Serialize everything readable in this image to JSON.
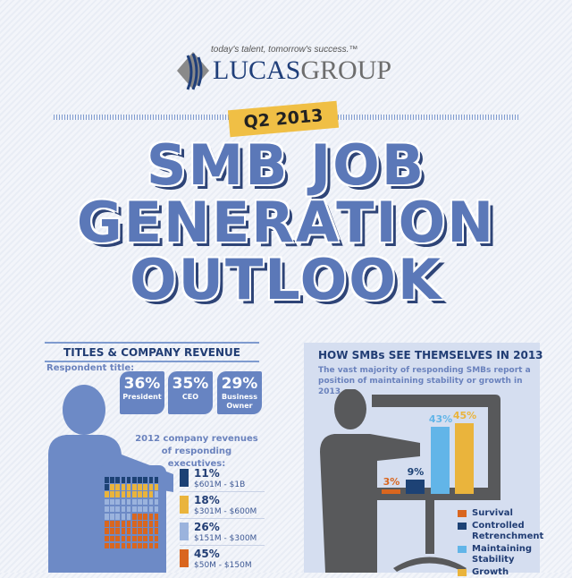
{
  "header": {
    "tagline": "today's talent, tomorrow's success.™",
    "logo_a": "LUCAS",
    "logo_b": "GROUP",
    "ribbon": "Q2 2013",
    "title_lines": [
      "SMB JOB",
      "GENERATION",
      "OUTLOOK"
    ]
  },
  "left_panel": {
    "title": "TITLES & COMPANY REVENUE",
    "respondent_label": "Respondent title:",
    "titles": [
      {
        "pct": "36%",
        "label": "President"
      },
      {
        "pct": "35%",
        "label": "CEO"
      },
      {
        "pct": "29%",
        "label": "Business Owner"
      }
    ],
    "revenue_title": "2012 company revenues of responding executives:",
    "revenue": [
      {
        "pct": "11%",
        "range": "$601M - $1B",
        "value": 11,
        "color": "#1d4275"
      },
      {
        "pct": "18%",
        "range": "$301M - $600M",
        "value": 18,
        "color": "#eab43c"
      },
      {
        "pct": "26%",
        "range": "$151M - $300M",
        "value": 26,
        "color": "#9bb3dd"
      },
      {
        "pct": "45%",
        "range": "$50M - $150M",
        "value": 45,
        "color": "#d9661f"
      }
    ]
  },
  "right_panel": {
    "title": "HOW SMBs SEE THEMSELVES IN 2013",
    "subtitle": "The vast majority of responding SMBs report a position of maintaining stability or growth in 2013."
  },
  "chart_data": {
    "type": "bar",
    "categories": [
      "Survival",
      "Controlled Retrenchment",
      "Maintaining Stability",
      "Growth"
    ],
    "values": [
      3,
      9,
      43,
      45
    ],
    "labels": [
      "3%",
      "9%",
      "43%",
      "45%"
    ],
    "colors": [
      "#d9661f",
      "#1d4275",
      "#62b5e8",
      "#eab43c"
    ],
    "legend": "bottom-right"
  }
}
